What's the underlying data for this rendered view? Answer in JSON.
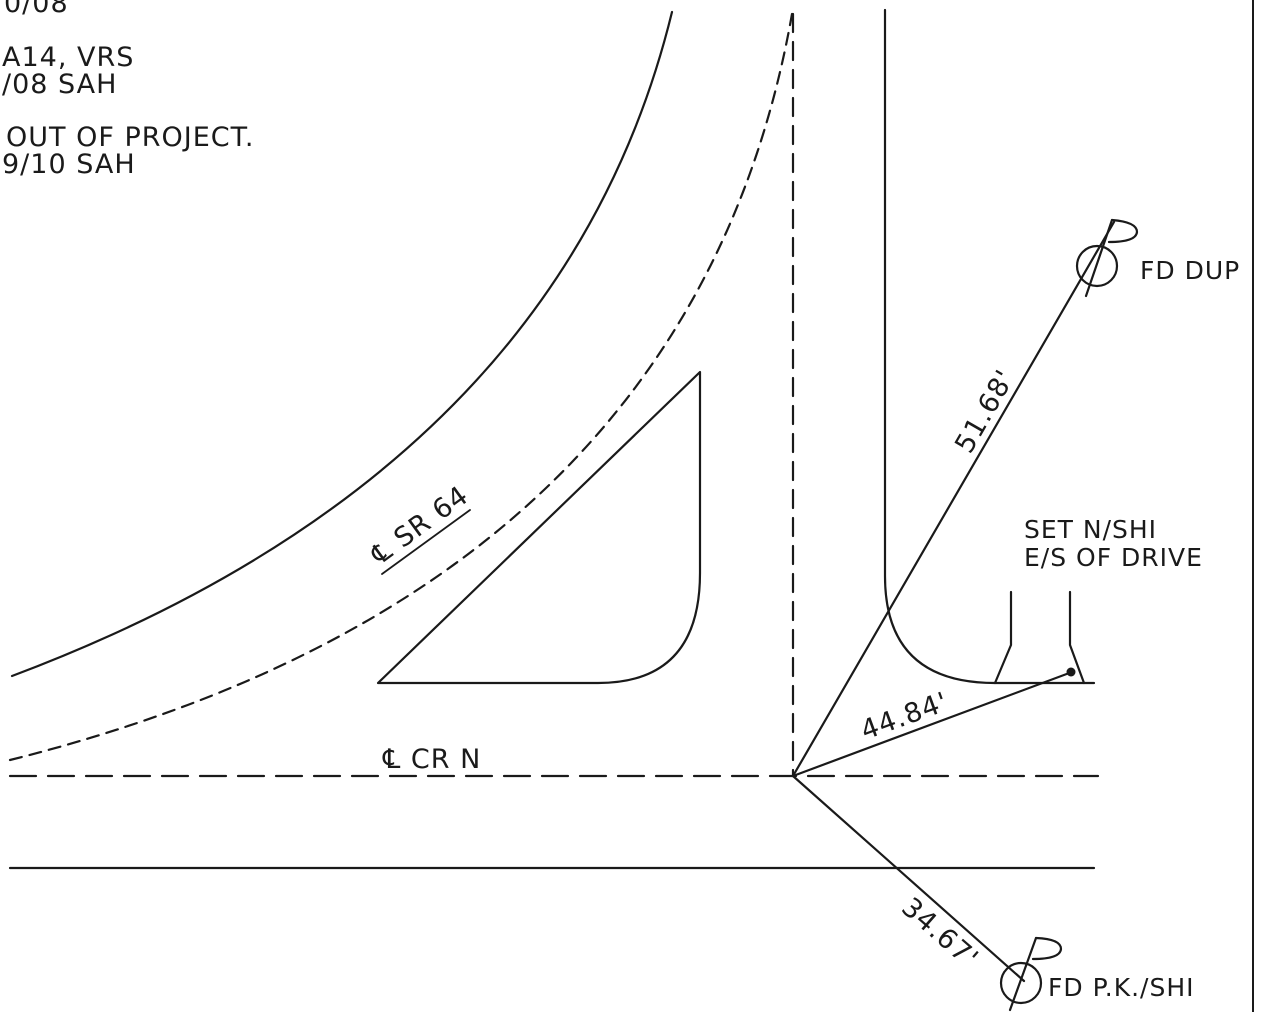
{
  "notes": {
    "line1": "0/08",
    "line2": "A14, VRS",
    "line3": "/08 SAH",
    "line4": "OUT OF PROJECT.",
    "line5": "9/10 SAH"
  },
  "centerlines": {
    "sr64": "℄ SR 64",
    "crn": "℄ CR N"
  },
  "monuments": {
    "fd_dup": "FD DUP",
    "fd_pk_shi": "FD P.K./SHI",
    "set_line1": "SET N/SHI",
    "set_line2": "E/S OF DRIVE"
  },
  "distances": {
    "d1": "51.68'",
    "d2": "44.84'",
    "d3": "34.67'"
  },
  "colors": {
    "ink": "#1a1a1a",
    "paper": "#ffffff"
  }
}
